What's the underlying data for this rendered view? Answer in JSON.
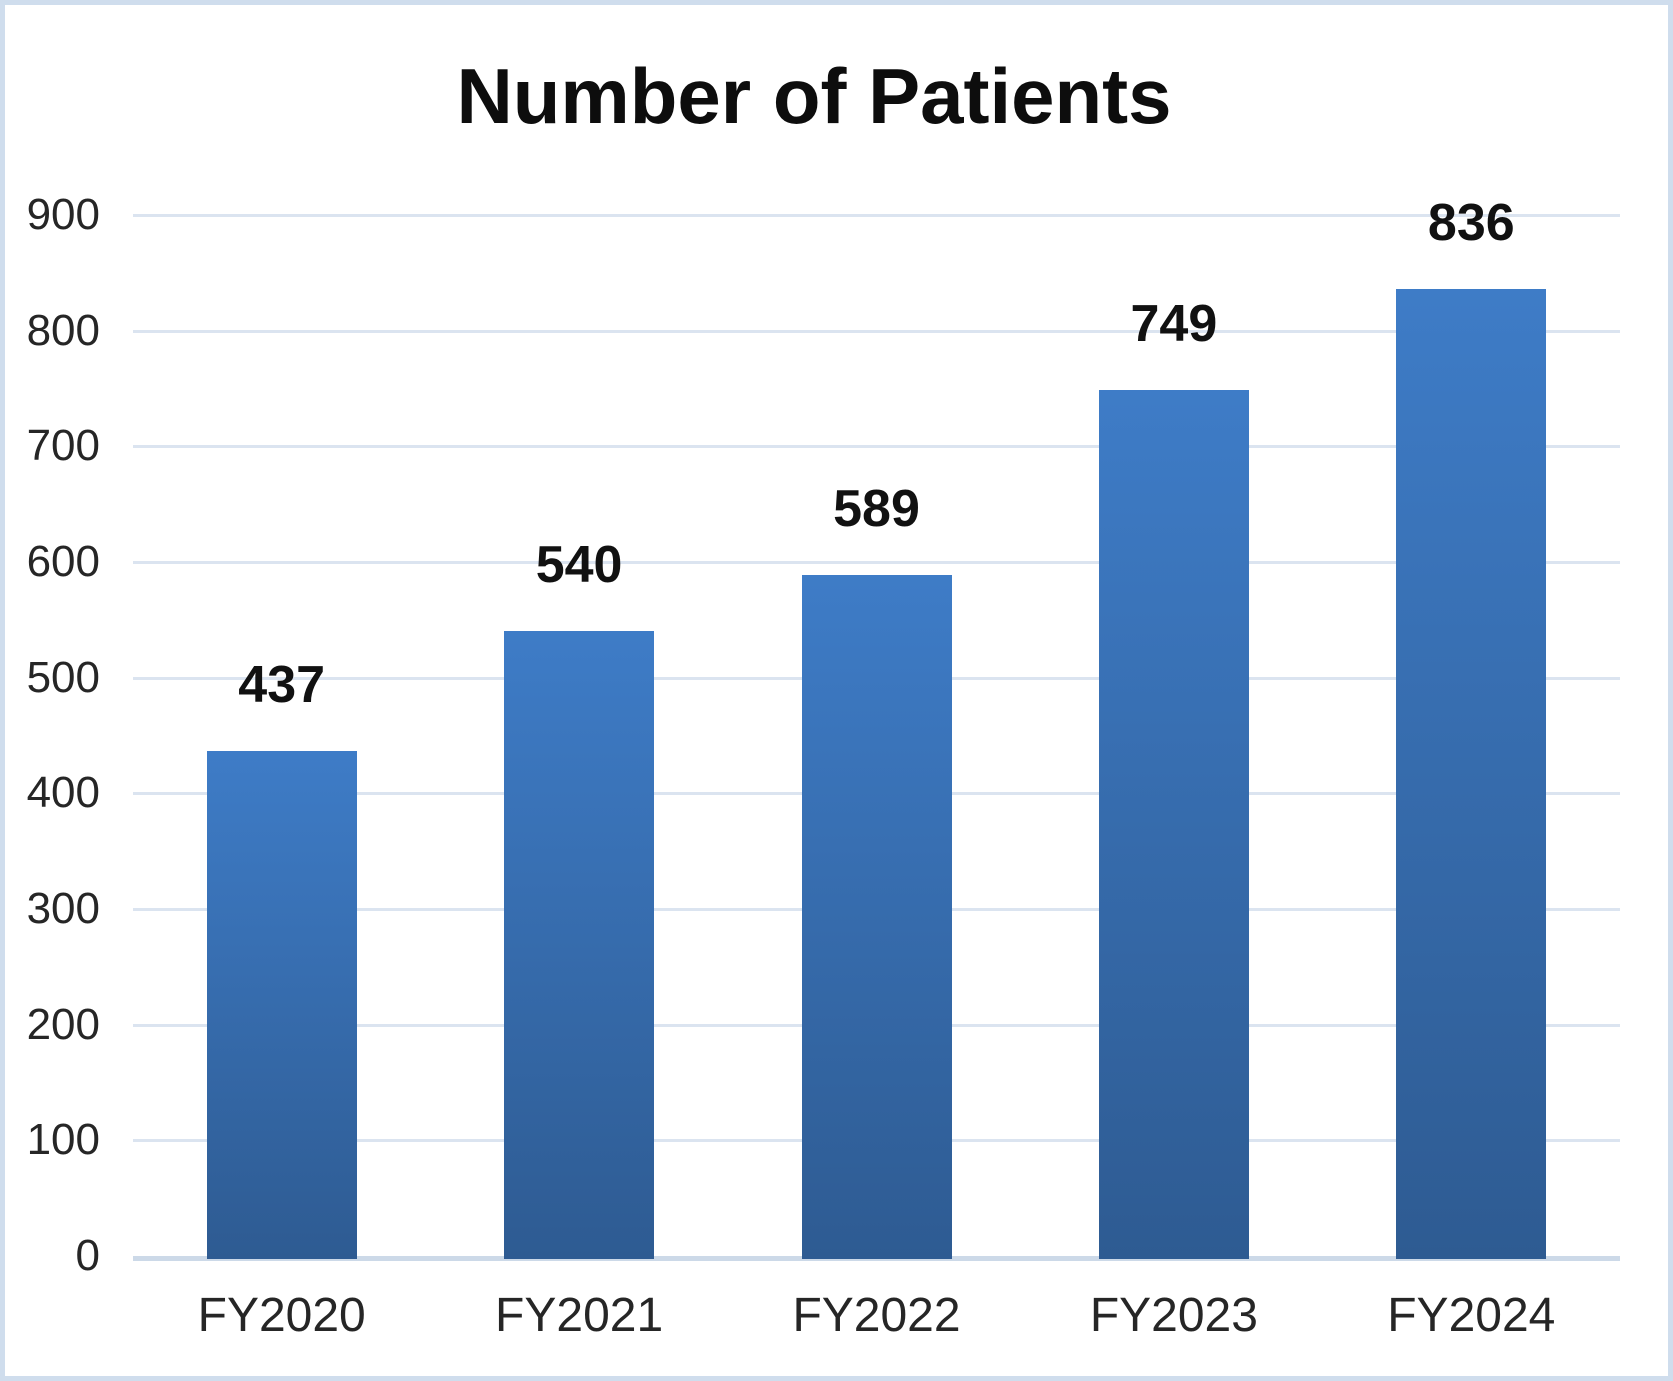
{
  "chart_data": {
    "type": "bar",
    "title": "Number of Patients",
    "categories": [
      "FY2020",
      "FY2021",
      "FY2022",
      "FY2023",
      "FY2024"
    ],
    "values": [
      437,
      540,
      589,
      749,
      836
    ],
    "xlabel": "",
    "ylabel": "",
    "ylim": [
      0,
      900
    ],
    "ytick_step": 100,
    "yticks": [
      0,
      100,
      200,
      300,
      400,
      500,
      600,
      700,
      800,
      900
    ],
    "grid": true,
    "legend": "none",
    "colors": {
      "bar_gradient_top": "#3e7cc7",
      "bar_gradient_bottom": "#2e5b92",
      "gridline": "#dbe4f0",
      "axis_baseline": "#ccd9e8",
      "frame_border": "#cfdded",
      "title_text": "#0d0d0d",
      "tick_text": "#262626",
      "value_label_text": "#111111"
    }
  }
}
